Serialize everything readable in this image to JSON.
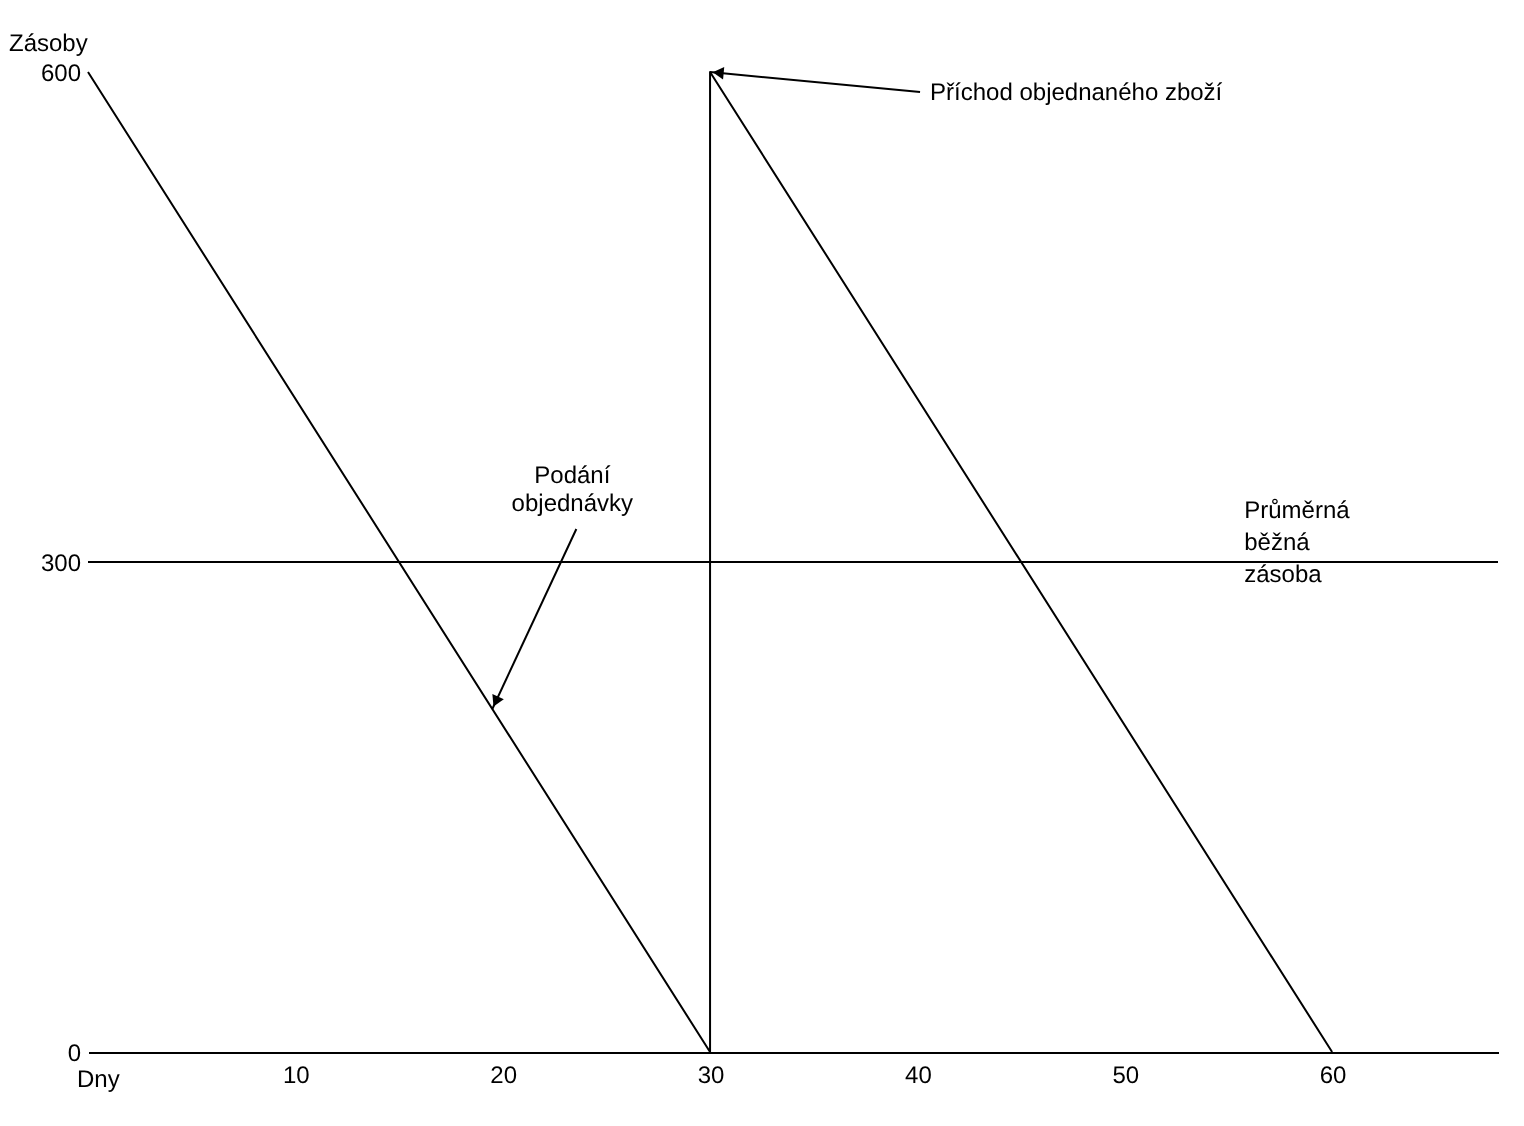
{
  "chart_data": {
    "type": "line",
    "xlabel": "Dny",
    "ylabel": "Zásoby",
    "x": [
      0,
      30,
      30,
      60
    ],
    "series": [
      {
        "color": "#000000",
        "values": [
          600,
          0,
          600,
          0
        ]
      }
    ],
    "xlim": [
      0,
      68
    ],
    "ylim": [
      0,
      600
    ],
    "xticks": [
      10,
      20,
      30,
      40,
      50,
      60
    ],
    "yticks": [
      0,
      300,
      600
    ],
    "ref_lines": [
      {
        "axis": "y",
        "value": 300,
        "label": "Průměrná běžná zásoba",
        "color": "#000000"
      }
    ],
    "annotations": [
      {
        "text": "Příchod objednaného zboží",
        "x": 30,
        "y": 600
      },
      {
        "text": "Podání objednávky",
        "x": 19.5,
        "y": 210
      }
    ],
    "grid": false,
    "marker": "none",
    "line_style": "solid"
  }
}
